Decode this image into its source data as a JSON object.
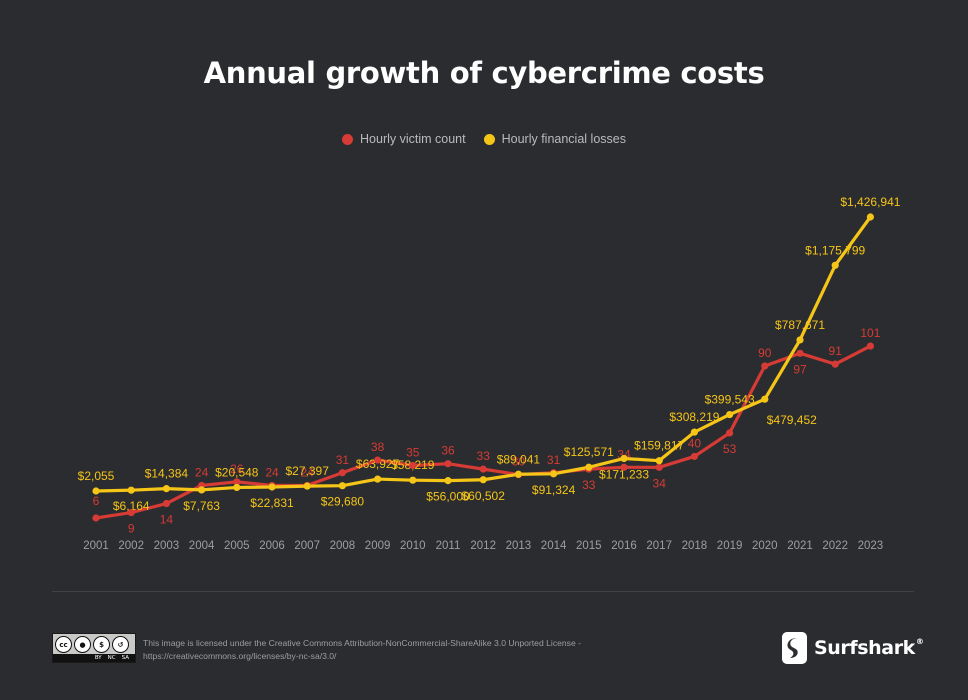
{
  "title": "Annual growth of cybercrime costs",
  "colors": {
    "victims": "#d63b35",
    "losses": "#f5c518",
    "background": "#2b2c2f",
    "tick": "#9d9ea1"
  },
  "chart_data": {
    "type": "line",
    "title": "Annual growth of cybercrime costs",
    "xlabel": "",
    "ylabel": "",
    "grid": false,
    "legend_position": "top-center",
    "x": [
      "2001",
      "2002",
      "2003",
      "2004",
      "2005",
      "2006",
      "2007",
      "2008",
      "2009",
      "2010",
      "2011",
      "2012",
      "2013",
      "2014",
      "2015",
      "2016",
      "2017",
      "2018",
      "2019",
      "2020",
      "2021",
      "2022",
      "2023"
    ],
    "series": [
      {
        "name": "Hourly victim count",
        "color": "#d63b35",
        "values": [
          6,
          9,
          14,
          24,
          26,
          24,
          24,
          31,
          38,
          35,
          36,
          33,
          30,
          31,
          33,
          34,
          34,
          40,
          53,
          90,
          97,
          91,
          101
        ],
        "labels": [
          "6",
          "9",
          "14",
          "24",
          "26",
          "24",
          "24",
          "31",
          "38",
          "35",
          "36",
          "33",
          "30",
          "31",
          "33",
          "34",
          "34",
          "40",
          "53",
          "90",
          "97",
          "91",
          "101"
        ]
      },
      {
        "name": "Hourly financial losses",
        "color": "#f5c518",
        "values": [
          2055,
          6164,
          14384,
          7763,
          20548,
          22831,
          27397,
          29680,
          63927,
          58219,
          56000,
          60502,
          89041,
          91324,
          125571,
          171233,
          159817,
          308219,
          399543,
          479452,
          787671,
          1175799,
          1426941
        ],
        "labels": [
          "$2,055",
          "$6,164",
          "$14,384",
          "$7,763",
          "$20,548",
          "$22,831",
          "$27,397",
          "$29,680",
          "$63,927",
          "$58,219",
          "$56,000",
          "$60,502",
          "$89,041",
          "$91,324",
          "$125,571",
          "$171,233",
          "$159,817",
          "$308,219",
          "$399,543",
          "$479,452",
          "$787,671",
          "$1,175,799",
          "$1,426,941"
        ]
      }
    ]
  },
  "footer": {
    "license_text": "This image is licensed under the Creative Commons Attribution-NonCommercial-ShareAlike 3.0 Unported License - https://creativecommons.org/licenses/by-nc-sa/3.0/",
    "cc_icons": [
      "cc",
      "by",
      "nc",
      "sa"
    ],
    "cc_labels": [
      "BY",
      "NC",
      "SA"
    ],
    "brand": "Surfshark",
    "brand_mark": "®"
  }
}
